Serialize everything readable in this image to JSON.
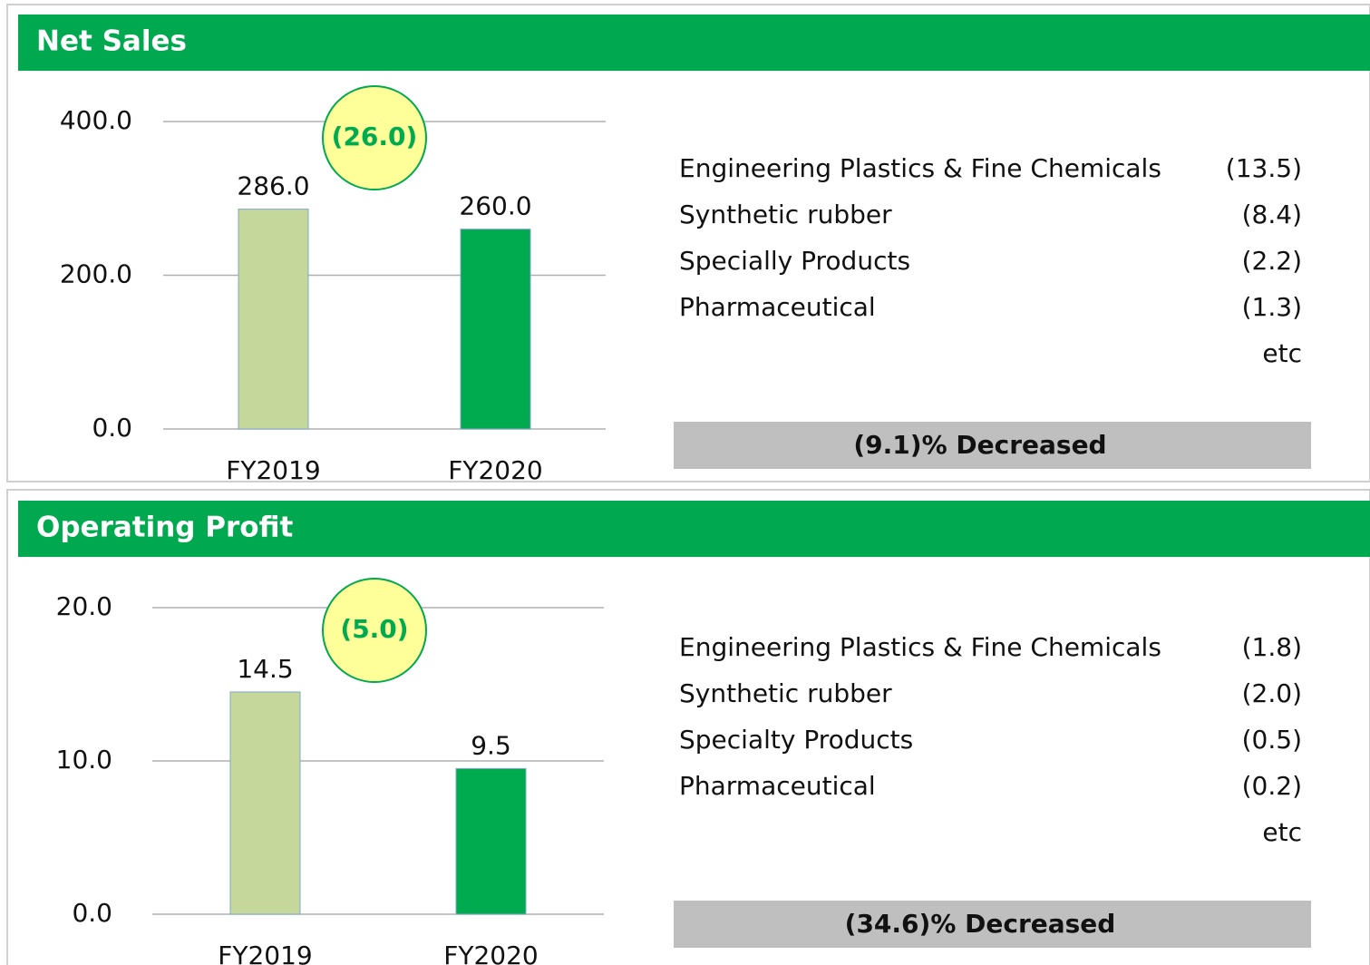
{
  "chart_data": [
    {
      "type": "bar",
      "title": "Net Sales",
      "categories": [
        "FY2019",
        "FY2020"
      ],
      "values": [
        286,
        260
      ],
      "value_labels": [
        "286.0",
        "260.0"
      ],
      "colors": [
        "#c5d79b",
        "#00aa4f"
      ],
      "ylim": [
        0,
        400
      ],
      "yticks": [
        {
          "value": 0,
          "label": "0.0"
        },
        {
          "value": 200,
          "label": "200.0"
        },
        {
          "value": 400,
          "label": "400.0"
        }
      ],
      "grid": true,
      "annotation": "(26.0)",
      "breakdown": [
        [
          "Engineering Plastics &  Fine Chemicals",
          "(13.5)"
        ],
        [
          "Synthetic rubber",
          "(8.4)"
        ],
        [
          "Specially Products",
          "(2.2)"
        ],
        [
          "Pharmaceutical",
          "(1.3)"
        ]
      ],
      "breakdown_note": "etc",
      "summary": "(9.1)% Decreased"
    },
    {
      "type": "bar",
      "title": "Operating Profit",
      "categories": [
        "FY2019",
        "FY2020"
      ],
      "values": [
        14.5,
        9.5
      ],
      "value_labels": [
        "14.5",
        "9.5"
      ],
      "colors": [
        "#c5d79b",
        "#00aa4f"
      ],
      "ylim": [
        0,
        20
      ],
      "yticks": [
        {
          "value": 0,
          "label": "0.0"
        },
        {
          "value": 10,
          "label": "10.0"
        },
        {
          "value": 20,
          "label": "20.0"
        }
      ],
      "grid": true,
      "annotation": "(5.0)",
      "breakdown": [
        [
          "Engineering Plastics & Fine Chemicals",
          "(1.8)"
        ],
        [
          "Synthetic rubber",
          "(2.0)"
        ],
        [
          "Specialty Products",
          "(0.5)"
        ],
        [
          "Pharmaceutical",
          "(0.2)"
        ]
      ],
      "breakdown_note": "etc",
      "summary": "(34.6)% Decreased"
    }
  ]
}
